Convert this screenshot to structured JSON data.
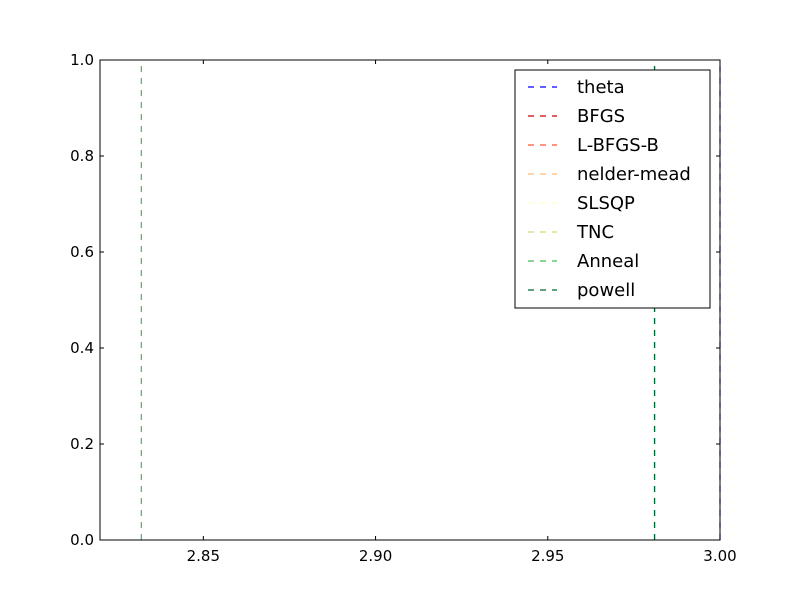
{
  "chart_data": {
    "type": "line",
    "title": "",
    "xlabel": "",
    "ylabel": "",
    "xlim": [
      2.82,
      3.0
    ],
    "ylim": [
      0.0,
      1.0
    ],
    "x_ticks": [
      {
        "value": 2.85,
        "label": "2.85"
      },
      {
        "value": 2.9,
        "label": "2.90"
      },
      {
        "value": 2.95,
        "label": "2.95"
      },
      {
        "value": 3.0,
        "label": "3.00"
      }
    ],
    "y_ticks": [
      {
        "value": 0.0,
        "label": "0.0"
      },
      {
        "value": 0.2,
        "label": "0.2"
      },
      {
        "value": 0.4,
        "label": "0.4"
      },
      {
        "value": 0.6,
        "label": "0.6"
      },
      {
        "value": 0.8,
        "label": "0.8"
      },
      {
        "value": 1.0,
        "label": "1.0"
      }
    ],
    "grid": false,
    "legend_position": "top-right",
    "line_style": "dashed",
    "series": [
      {
        "name": "theta",
        "x": 3.0,
        "color": "#0000ff"
      },
      {
        "name": "BFGS",
        "x": 2.981,
        "color": "#cc0000"
      },
      {
        "name": "L-BFGS-B",
        "x": 2.981,
        "color": "#ff5533"
      },
      {
        "name": "nelder-mead",
        "x": 2.981,
        "color": "#ffbb77"
      },
      {
        "name": "SLSQP",
        "x": 2.981,
        "color": "#ffffcc"
      },
      {
        "name": "TNC",
        "x": 2.981,
        "color": "#ccdd77"
      },
      {
        "name": "Anneal",
        "x": 2.832,
        "color": "#44bb55"
      },
      {
        "name": "powell",
        "x": 2.981,
        "color": "#006633"
      }
    ]
  }
}
